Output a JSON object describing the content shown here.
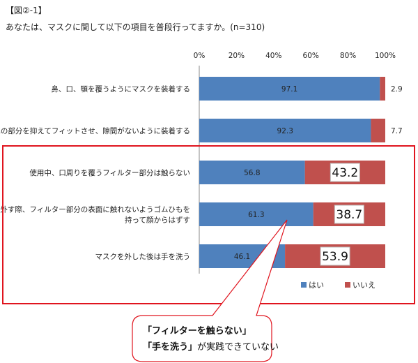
{
  "figure_label": "【図②-1】",
  "question": "あなたは、マスクに関して以下の項目を普段行ってますか。(n=310)",
  "colors": {
    "yes": "#4f81bd",
    "no": "#c0504d",
    "highlight": "#e0141e"
  },
  "chart_data": {
    "type": "bar",
    "orientation": "horizontal",
    "stacked": true,
    "categories": [
      "鼻、口、顎を覆うようにマスクを装着する",
      "鼻の部分を抑えてフィットさせ、隙間がないように装着する",
      "使用中、口周りを覆うフィルター部分は触らない",
      "外す際、フィルター部分の表面に触れないようゴムひもを持って顔からはずす",
      "マスクを外した後は手を洗う"
    ],
    "category_lines": [
      [
        "鼻、口、顎を覆うようにマスクを装着する"
      ],
      [
        "鼻の部分を抑えてフィットさせ、隙間がないように装着する"
      ],
      [
        "使用中、口周りを覆うフィルター部分は触らない"
      ],
      [
        "外す際、フィルター部分の表面に触れないようゴムひもを",
        "持って顔からはずす"
      ],
      [
        "マスクを外した後は手を洗う"
      ]
    ],
    "series": [
      {
        "name": "はい",
        "values": [
          97.1,
          92.3,
          56.8,
          61.3,
          46.1
        ],
        "labels": [
          "97.1",
          "92.3",
          "56.8",
          "61.3",
          "46.1"
        ]
      },
      {
        "name": "いいえ",
        "values": [
          2.9,
          7.7,
          43.2,
          38.7,
          53.9
        ],
        "labels": [
          "2.9",
          "7.7",
          "43.2",
          "38.7",
          "53.9"
        ]
      }
    ],
    "xlim": [
      0,
      100
    ],
    "x_ticks": [
      "0%",
      "20%",
      "40%",
      "60%",
      "80%",
      "100%"
    ],
    "legend": "bottom-right",
    "grid": false
  },
  "callout": {
    "line1": "「フィルターを触らない」",
    "line2_bold": "「手を洗う」",
    "line2_rest": "が実践できていない"
  }
}
